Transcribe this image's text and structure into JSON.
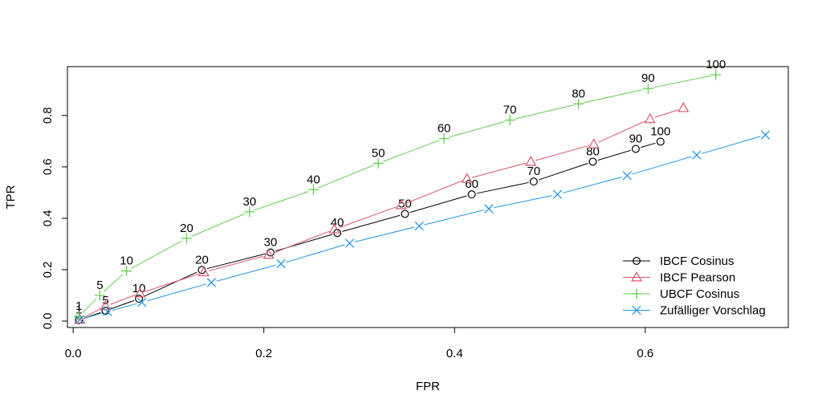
{
  "chart_data": {
    "type": "line",
    "xlabel": "FPR",
    "ylabel": "TPR",
    "xlim": [
      -0.006,
      0.75
    ],
    "ylim": [
      -0.025,
      0.99
    ],
    "xticks": [
      0.0,
      0.2,
      0.4,
      0.6
    ],
    "yticks": [
      0.0,
      0.2,
      0.4,
      0.6,
      0.8
    ],
    "xtick_labels": [
      "0.0",
      "0.2",
      "0.4",
      "0.6"
    ],
    "ytick_labels": [
      "0.0",
      "0.2",
      "0.4",
      "0.6",
      "0.8"
    ],
    "grid": false,
    "legend_position": "bottom-right",
    "series": [
      {
        "name": "IBCF Cosinus",
        "color": "#000000",
        "marker": "circle",
        "x": [
          0.006,
          0.034,
          0.069,
          0.135,
          0.207,
          0.277,
          0.348,
          0.418,
          0.483,
          0.545,
          0.59,
          0.616
        ],
        "y": [
          0.004,
          0.04,
          0.087,
          0.199,
          0.267,
          0.343,
          0.417,
          0.493,
          0.543,
          0.62,
          0.67,
          0.698
        ],
        "labels": [
          "1",
          "5",
          "10",
          "20",
          "30",
          "40",
          "50",
          "60",
          "70",
          "80",
          "90",
          "100"
        ]
      },
      {
        "name": "IBCF Pearson",
        "color": "#DF536B",
        "marker": "triangle",
        "x": [
          0.007,
          0.034,
          0.07,
          0.137,
          0.205,
          0.274,
          0.344,
          0.413,
          0.48,
          0.546,
          0.605,
          0.64
        ],
        "y": [
          0.006,
          0.058,
          0.108,
          0.19,
          0.258,
          0.357,
          0.451,
          0.553,
          0.62,
          0.688,
          0.786,
          0.829
        ],
        "labels": []
      },
      {
        "name": "UBCF Cosinus",
        "color": "#61D04F",
        "marker": "plus",
        "x": [
          0.006,
          0.028,
          0.056,
          0.119,
          0.185,
          0.252,
          0.32,
          0.389,
          0.458,
          0.53,
          0.603,
          0.674
        ],
        "y": [
          0.018,
          0.1,
          0.195,
          0.322,
          0.425,
          0.511,
          0.614,
          0.71,
          0.782,
          0.845,
          0.905,
          0.958
        ],
        "labels": [
          "1",
          "5",
          "10",
          "20",
          "30",
          "40",
          "50",
          "60",
          "70",
          "80",
          "90",
          "100"
        ]
      },
      {
        "name": "Zufälliger Vorschlag",
        "color": "#2297E6",
        "marker": "x",
        "x": [
          0.007,
          0.036,
          0.072,
          0.145,
          0.218,
          0.29,
          0.363,
          0.436,
          0.508,
          0.581,
          0.654,
          0.726
        ],
        "y": [
          0.006,
          0.037,
          0.073,
          0.15,
          0.223,
          0.303,
          0.37,
          0.437,
          0.493,
          0.566,
          0.646,
          0.724
        ],
        "labels": []
      }
    ]
  }
}
